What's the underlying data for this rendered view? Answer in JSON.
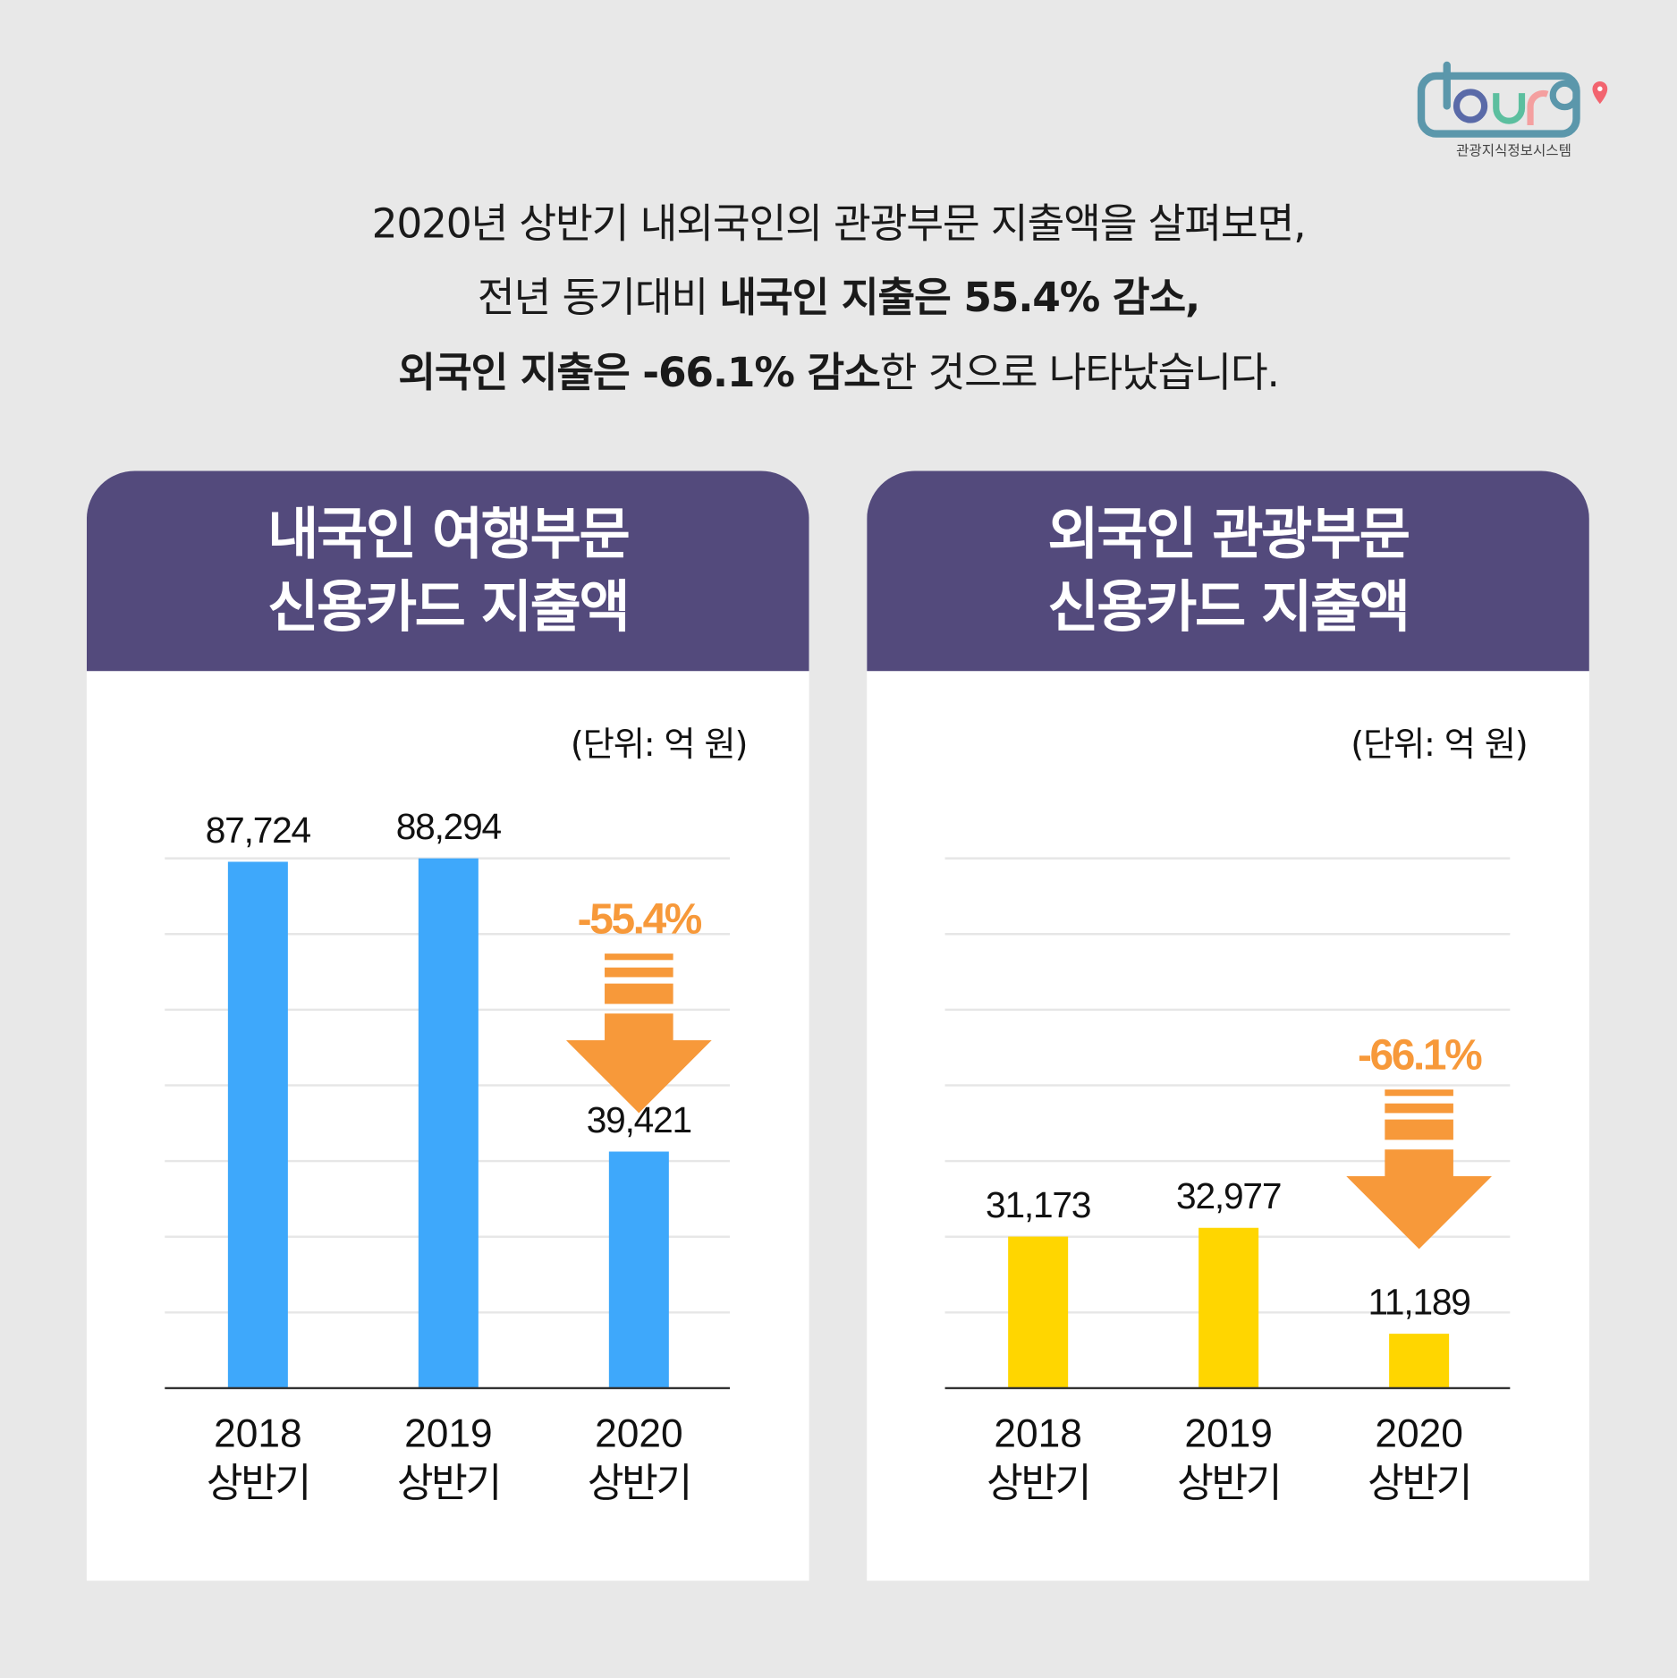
{
  "logo": {
    "wordmark": "tour9",
    "subtitle": "관광지식정보시스템",
    "colors": {
      "frame": "#5b97ab",
      "o": "#5a6aa8",
      "u": "#5cbf9f",
      "r": "#f4a0a0",
      "pin": "#f2646f"
    }
  },
  "intro": {
    "line1": [
      {
        "text": "2020년 상반기 내외국인의 관광부문 지출액을 살펴보면,",
        "bold": false
      }
    ],
    "line2": [
      {
        "text": "전년 동기대비 ",
        "bold": false
      },
      {
        "text": "내국인 지출은 55.4% 감소,",
        "bold": true
      }
    ],
    "line3": [
      {
        "text": "외국인 지출은 -66.1% 감소",
        "bold": true
      },
      {
        "text": "한 것으로 나타났습니다.",
        "bold": false
      }
    ]
  },
  "colors": {
    "background": "#e8e8e8",
    "header": "#534a7c",
    "domestic_bar": "#3ea8fb",
    "foreign_bar": "#ffd600",
    "arrow": "#f7993a"
  },
  "chart_data": [
    {
      "type": "bar",
      "title_lines": [
        "내국인 여행부문",
        "신용카드 지출액"
      ],
      "unit": "(단위: 억 원)",
      "categories": [
        [
          "2018",
          "상반기"
        ],
        [
          "2019",
          "상반기"
        ],
        [
          "2020",
          "상반기"
        ]
      ],
      "values": [
        87724,
        88294,
        39421
      ],
      "value_labels": [
        "87,724",
        "88,294",
        "39,421"
      ],
      "annotation": "-55.4%",
      "ylim": [
        0,
        88294
      ],
      "grid": true,
      "color": "#3ea8fb"
    },
    {
      "type": "bar",
      "title_lines": [
        "외국인 관광부문",
        "신용카드 지출액"
      ],
      "unit": "(단위: 억 원)",
      "categories": [
        [
          "2018",
          "상반기"
        ],
        [
          "2019",
          "상반기"
        ],
        [
          "2020",
          "상반기"
        ]
      ],
      "values": [
        31173,
        32977,
        11189
      ],
      "value_labels": [
        "31,173",
        "32,977",
        "11,189"
      ],
      "annotation": "-66.1%",
      "ylim": [
        0,
        109000
      ],
      "grid": true,
      "color": "#ffd600"
    }
  ]
}
